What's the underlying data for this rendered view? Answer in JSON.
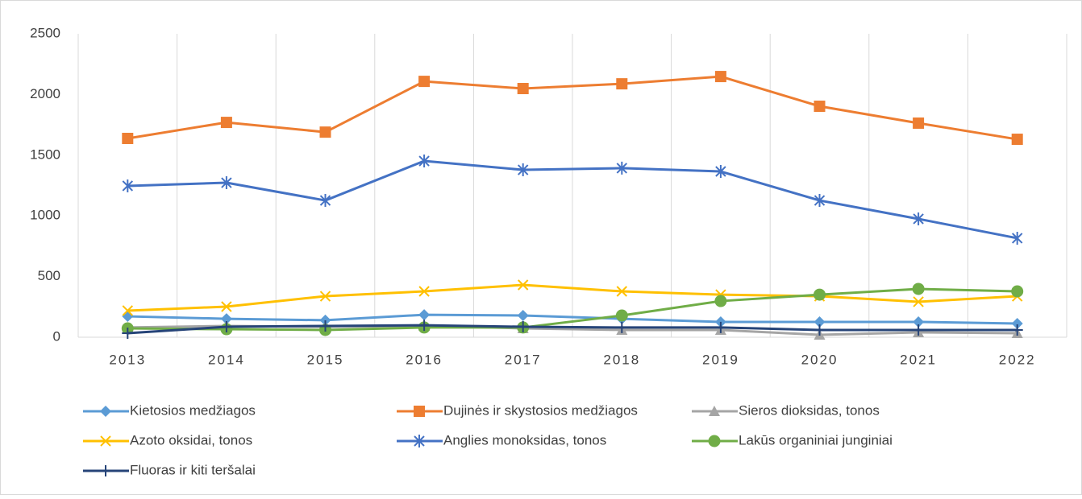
{
  "chart_data": {
    "type": "line",
    "categories": [
      "2013",
      "2014",
      "2015",
      "2016",
      "2017",
      "2018",
      "2019",
      "2020",
      "2021",
      "2022"
    ],
    "ylim": [
      0,
      2500
    ],
    "yticks": [
      0,
      500,
      1000,
      1500,
      2000,
      2500
    ],
    "grid": "vertical",
    "legend": "bottom",
    "series": [
      {
        "name": "Kietosios medžiagos",
        "color": "#5b9bd5",
        "marker": "diamond",
        "values": [
          172,
          152,
          140,
          185,
          179,
          152,
          126,
          126,
          126,
          113
        ]
      },
      {
        "name": "Dujinės ir skystosios medžiagos",
        "color": "#ed7d31",
        "marker": "square",
        "values": [
          1638,
          1770,
          1690,
          2108,
          2049,
          2088,
          2148,
          1903,
          1764,
          1631
        ]
      },
      {
        "name": "Sieros dioksidas, tonos",
        "color": "#a5a5a5",
        "marker": "triangle",
        "values": [
          80,
          93,
          86,
          93,
          73,
          60,
          60,
          20,
          40,
          33
        ]
      },
      {
        "name": "Azoto oksidai, tonos",
        "color": "#ffc000",
        "marker": "x",
        "values": [
          219,
          252,
          338,
          378,
          431,
          378,
          351,
          338,
          292,
          338
        ]
      },
      {
        "name": "Anglies monoksidas, tonos",
        "color": "#4472c4",
        "marker": "star",
        "values": [
          1247,
          1273,
          1127,
          1452,
          1379,
          1393,
          1366,
          1127,
          975,
          816
        ]
      },
      {
        "name": "Lakūs organiniai junginiai",
        "color": "#70ad47",
        "marker": "circle",
        "values": [
          73,
          66,
          60,
          80,
          80,
          179,
          298,
          351,
          398,
          378
        ]
      },
      {
        "name": "Fluoras ir kiti teršalai",
        "color": "#264478",
        "marker": "plus",
        "values": [
          33,
          86,
          93,
          99,
          86,
          80,
          80,
          60,
          60,
          60
        ]
      }
    ]
  }
}
